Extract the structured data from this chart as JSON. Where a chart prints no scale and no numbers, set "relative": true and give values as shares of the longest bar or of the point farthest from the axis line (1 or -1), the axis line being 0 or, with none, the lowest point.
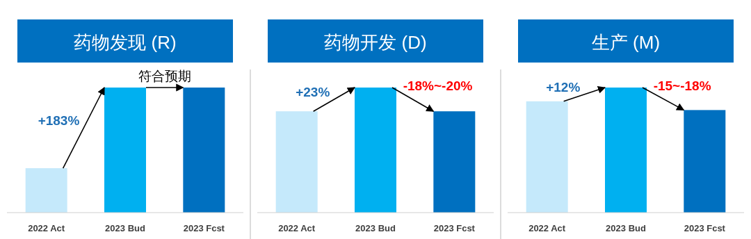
{
  "chart_data": [
    {
      "type": "bar",
      "title": "药物发现 (R)",
      "categories": [
        "2022 Act",
        "2023 Bud",
        "2023 Fcst"
      ],
      "values": [
        0.355,
        1,
        1
      ],
      "colors": [
        "#c5e9fb",
        "#00b0f0",
        "#0070c0"
      ],
      "relative": true,
      "annotations": [
        "+183%",
        "符合预期"
      ]
    },
    {
      "type": "bar",
      "title": "药物开发 (D)",
      "categories": [
        "2022 Act",
        "2023 Bud",
        "2023 Fcst"
      ],
      "values": [
        0.81,
        1,
        0.81
      ],
      "colors": [
        "#c5e9fb",
        "#00b0f0",
        "#0070c0"
      ],
      "relative": true,
      "annotations": [
        "+23%",
        "-18%~-20%"
      ]
    },
    {
      "type": "bar",
      "title": "生产 (M)",
      "categories": [
        "2022 Act",
        "2023 Bud",
        "2023 Fcst"
      ],
      "values": [
        0.89,
        1,
        0.82
      ],
      "colors": [
        "#c5e9fb",
        "#00b0f0",
        "#0070c0"
      ],
      "relative": true,
      "annotations": [
        "+12%",
        "-15~-18%"
      ]
    }
  ]
}
